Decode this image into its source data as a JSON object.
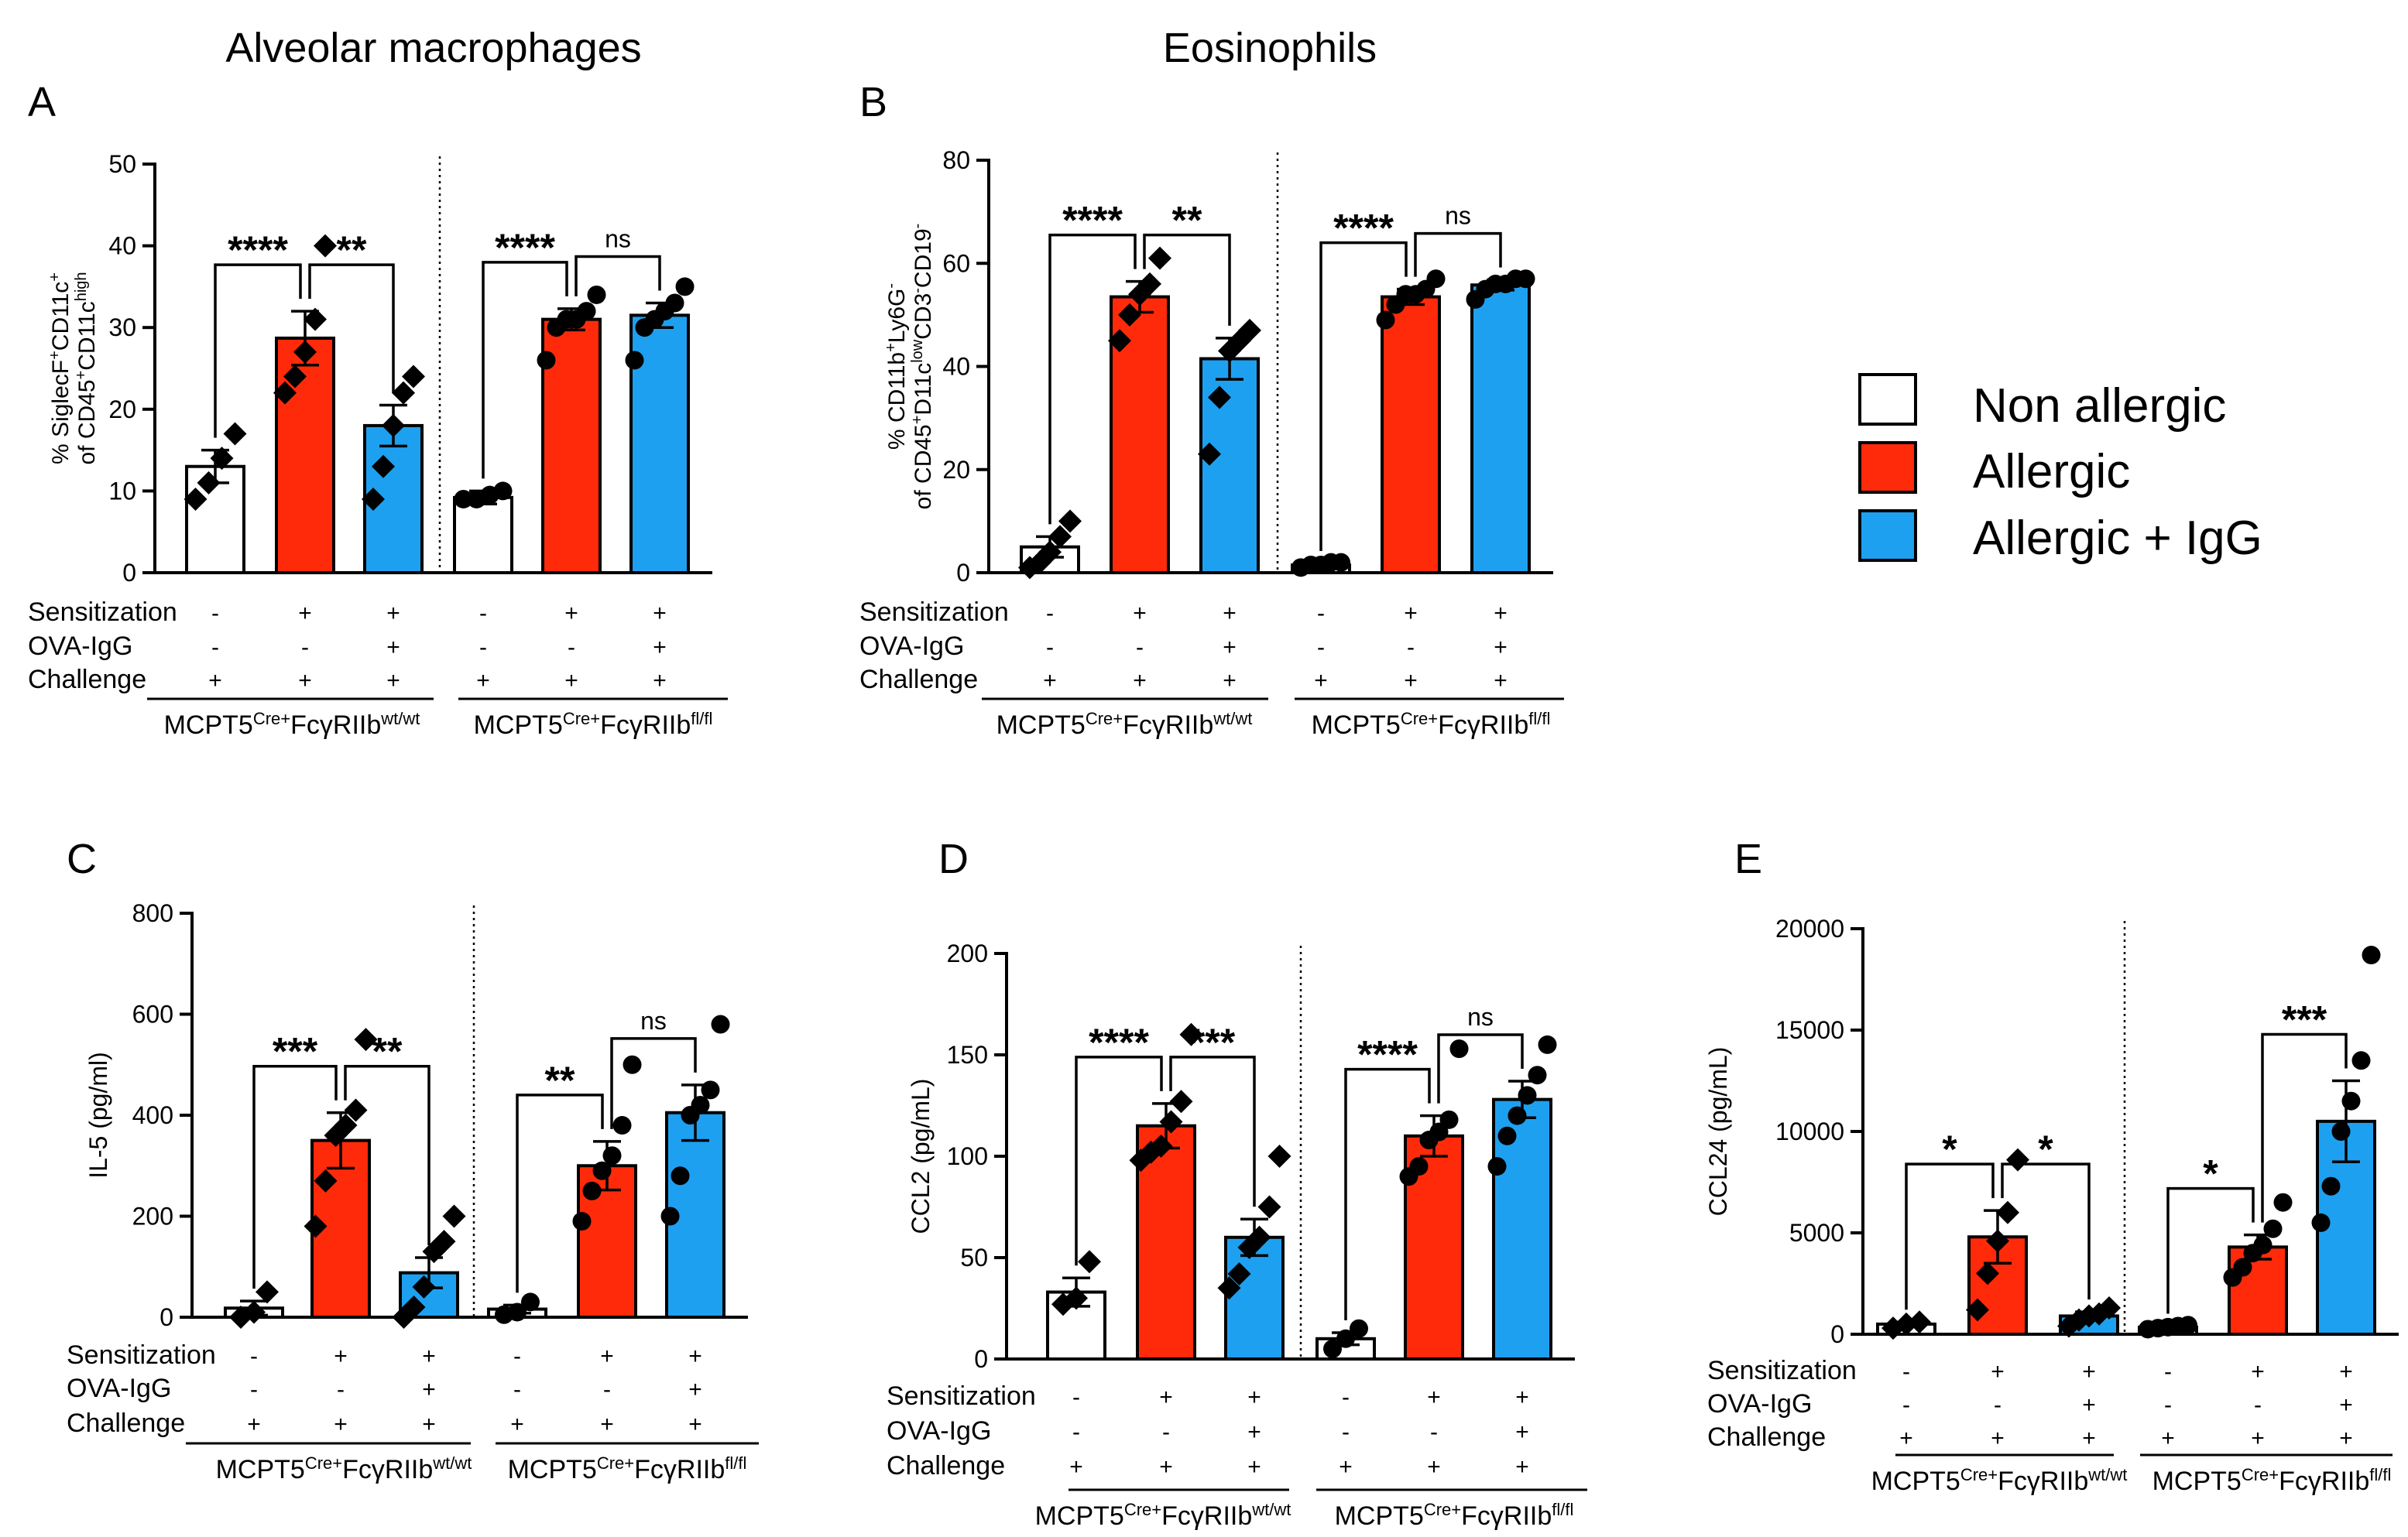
{
  "headers": {
    "macrophages": "Alveolar macrophages",
    "eosinophils": "Eosinophils"
  },
  "legend": [
    {
      "label": "Non allergic",
      "color": "#ffffff"
    },
    {
      "label": "Allergic",
      "color": "#ff2a0a"
    },
    {
      "label": "Allergic + IgG",
      "color": "#1ea0f0"
    }
  ],
  "colors": {
    "non": "#ffffff",
    "allergic": "#ff2a0a",
    "igg": "#1ea0f0"
  },
  "conditions": {
    "labels": [
      "Sensitization",
      "OVA-IgG",
      "Challenge"
    ],
    "signs": [
      [
        "-",
        "+",
        "+",
        "-",
        "+",
        "+"
      ],
      [
        "-",
        "-",
        "+",
        "-",
        "-",
        "+"
      ],
      [
        "+",
        "+",
        "+",
        "+",
        "+",
        "+"
      ]
    ]
  },
  "genotypes": [
    {
      "base": "MCPT5",
      "sup1": "Cre+",
      "mid": "FcγRIIb",
      "sup2": "wt/wt"
    },
    {
      "base": "MCPT5",
      "sup1": "Cre+",
      "mid": "FcγRIIb",
      "sup2": "fl/fl"
    }
  ],
  "chart_data": [
    {
      "panel": "A",
      "type": "bar",
      "ylabel_line1": [
        {
          "t": "% SiglecF"
        },
        {
          "t": "+",
          "s": 1
        },
        {
          "t": "CD11c"
        },
        {
          "t": "+",
          "s": 1
        }
      ],
      "ylabel_line2": [
        {
          "t": "of CD45"
        },
        {
          "t": "+",
          "s": 1
        },
        {
          "t": "CD11c"
        },
        {
          "t": "high",
          "s": 1
        }
      ],
      "ylim": [
        0,
        50
      ],
      "yticks": [
        0,
        10,
        20,
        30,
        40,
        50
      ],
      "groups": [
        "Non allergic",
        "Allergic",
        "Allergic + IgG",
        "Non allergic",
        "Allergic",
        "Allergic + IgG"
      ],
      "values": [
        13,
        28.7,
        18,
        9.2,
        31,
        31.5
      ],
      "sem": [
        2,
        3.3,
        2.5,
        0.8,
        1.3,
        1.5
      ],
      "points": [
        [
          9,
          11,
          14,
          17
        ],
        [
          22,
          24,
          27,
          31,
          40
        ],
        [
          9,
          13,
          18,
          22,
          24
        ],
        [
          9,
          9,
          9.5,
          10
        ],
        [
          26,
          30,
          31,
          31,
          32,
          34
        ],
        [
          26,
          30,
          31,
          32,
          33,
          35
        ]
      ],
      "markers": [
        "diamond",
        "diamond",
        "diamond",
        "circle",
        "circle",
        "circle"
      ],
      "sig": [
        {
          "l": 0,
          "r": 1,
          "text": "****"
        },
        {
          "l": 1,
          "r": 2,
          "text": "**"
        },
        {
          "l": 3,
          "r": 4,
          "text": "****"
        },
        {
          "l": 4,
          "r": 5,
          "text": "ns"
        }
      ]
    },
    {
      "panel": "B",
      "type": "bar",
      "ylabel_line1": [
        {
          "t": "% CD11b"
        },
        {
          "t": "+",
          "s": 1
        },
        {
          "t": "Ly6G"
        },
        {
          "t": "-",
          "s": 1
        }
      ],
      "ylabel_line2": [
        {
          "t": "of CD45"
        },
        {
          "t": "+",
          "s": 1
        },
        {
          "t": "D11c"
        },
        {
          "t": "low",
          "s": 1
        },
        {
          "t": "CD3"
        },
        {
          "t": "-",
          "s": 1
        },
        {
          "t": "CD19"
        },
        {
          "t": "-",
          "s": 1
        }
      ],
      "ylim": [
        0,
        80
      ],
      "yticks": [
        0,
        20,
        40,
        60,
        80
      ],
      "groups": [
        "Non allergic",
        "Allergic",
        "Allergic + IgG",
        "Non allergic",
        "Allergic",
        "Allergic + IgG"
      ],
      "values": [
        5,
        53.5,
        41.5,
        1.5,
        53.5,
        55.8
      ],
      "sem": [
        2,
        3,
        4,
        0.3,
        1.5,
        1
      ],
      "points": [
        [
          1,
          2,
          4,
          7,
          10
        ],
        [
          45,
          50,
          54,
          56,
          61
        ],
        [
          23,
          34,
          43,
          45,
          47
        ],
        [
          1,
          1.5,
          1.5,
          2,
          2
        ],
        [
          49,
          52,
          54,
          54,
          55,
          57
        ],
        [
          53,
          55,
          56,
          56,
          57,
          57
        ]
      ],
      "markers": [
        "diamond",
        "diamond",
        "diamond",
        "circle",
        "circle",
        "circle"
      ],
      "sig": [
        {
          "l": 0,
          "r": 1,
          "text": "****"
        },
        {
          "l": 1,
          "r": 2,
          "text": "**"
        },
        {
          "l": 3,
          "r": 4,
          "text": "****"
        },
        {
          "l": 4,
          "r": 5,
          "text": "ns"
        }
      ]
    },
    {
      "panel": "C",
      "type": "bar",
      "ylabel": "IL-5 (pg/ml)",
      "ylim": [
        0,
        800
      ],
      "yticks": [
        0,
        200,
        400,
        600,
        800
      ],
      "groups": [
        "Non allergic",
        "Allergic",
        "Allergic + IgG",
        "Non allergic",
        "Allergic",
        "Allergic + IgG"
      ],
      "values": [
        18,
        350,
        88,
        16,
        300,
        405
      ],
      "sem": [
        14,
        55,
        30,
        8,
        48,
        55
      ],
      "points": [
        [
          0,
          10,
          50
        ],
        [
          180,
          270,
          360,
          380,
          410,
          550
        ],
        [
          0,
          20,
          60,
          130,
          150,
          200
        ],
        [
          5,
          10,
          30
        ],
        [
          190,
          250,
          290,
          320,
          380,
          500
        ],
        [
          200,
          280,
          400,
          420,
          450,
          580
        ]
      ],
      "markers": [
        "diamond",
        "diamond",
        "diamond",
        "circle",
        "circle",
        "circle"
      ],
      "sig": [
        {
          "l": 0,
          "r": 1,
          "text": "***"
        },
        {
          "l": 1,
          "r": 2,
          "text": "**"
        },
        {
          "l": 3,
          "r": 4,
          "text": "**"
        },
        {
          "l": 4,
          "r": 5,
          "text": "ns"
        }
      ]
    },
    {
      "panel": "D",
      "type": "bar",
      "ylabel": "CCL2 (pg/mL)",
      "ylim": [
        0,
        200
      ],
      "yticks": [
        0,
        50,
        100,
        150,
        200
      ],
      "groups": [
        "Non allergic",
        "Allergic",
        "Allergic + IgG",
        "Non allergic",
        "Allergic",
        "Allergic + IgG"
      ],
      "values": [
        33,
        115,
        60,
        10,
        110,
        128
      ],
      "sem": [
        7,
        11,
        9,
        3,
        10,
        9
      ],
      "points": [
        [
          27,
          30,
          48
        ],
        [
          98,
          102,
          105,
          117,
          127,
          160
        ],
        [
          35,
          42,
          55,
          60,
          75,
          100
        ],
        [
          5,
          10,
          15
        ],
        [
          90,
          95,
          108,
          112,
          118,
          153
        ],
        [
          95,
          110,
          120,
          130,
          140,
          155
        ]
      ],
      "markers": [
        "diamond",
        "diamond",
        "diamond",
        "circle",
        "circle",
        "circle"
      ],
      "sig": [
        {
          "l": 0,
          "r": 1,
          "text": "****"
        },
        {
          "l": 1,
          "r": 2,
          "text": "***"
        },
        {
          "l": 3,
          "r": 4,
          "text": "****"
        },
        {
          "l": 4,
          "r": 5,
          "text": "ns"
        }
      ]
    },
    {
      "panel": "E",
      "type": "bar",
      "ylabel": "CCL24 (pg/mL)",
      "ylim": [
        0,
        20000
      ],
      "yticks": [
        0,
        5000,
        10000,
        15000,
        20000
      ],
      "groups": [
        "Non allergic",
        "Allergic",
        "Allergic + IgG",
        "Non allergic",
        "Allergic",
        "Allergic + IgG"
      ],
      "values": [
        500,
        4800,
        900,
        350,
        4300,
        10500
      ],
      "sem": [
        100,
        1300,
        200,
        50,
        600,
        2000
      ],
      "points": [
        [
          300,
          500,
          600
        ],
        [
          1200,
          3000,
          4600,
          6000,
          8600
        ],
        [
          400,
          700,
          900,
          1000,
          1300
        ],
        [
          250,
          300,
          350,
          400,
          450
        ],
        [
          2800,
          3300,
          4000,
          4400,
          5200,
          6500
        ],
        [
          5500,
          7300,
          10000,
          11500,
          13500,
          18700
        ]
      ],
      "markers": [
        "diamond",
        "diamond",
        "diamond",
        "circle",
        "circle",
        "circle"
      ],
      "sig": [
        {
          "l": 0,
          "r": 1,
          "text": "*"
        },
        {
          "l": 1,
          "r": 2,
          "text": "*"
        },
        {
          "l": 3,
          "r": 4,
          "text": "*"
        },
        {
          "l": 4,
          "r": 5,
          "text": "***"
        }
      ]
    }
  ]
}
